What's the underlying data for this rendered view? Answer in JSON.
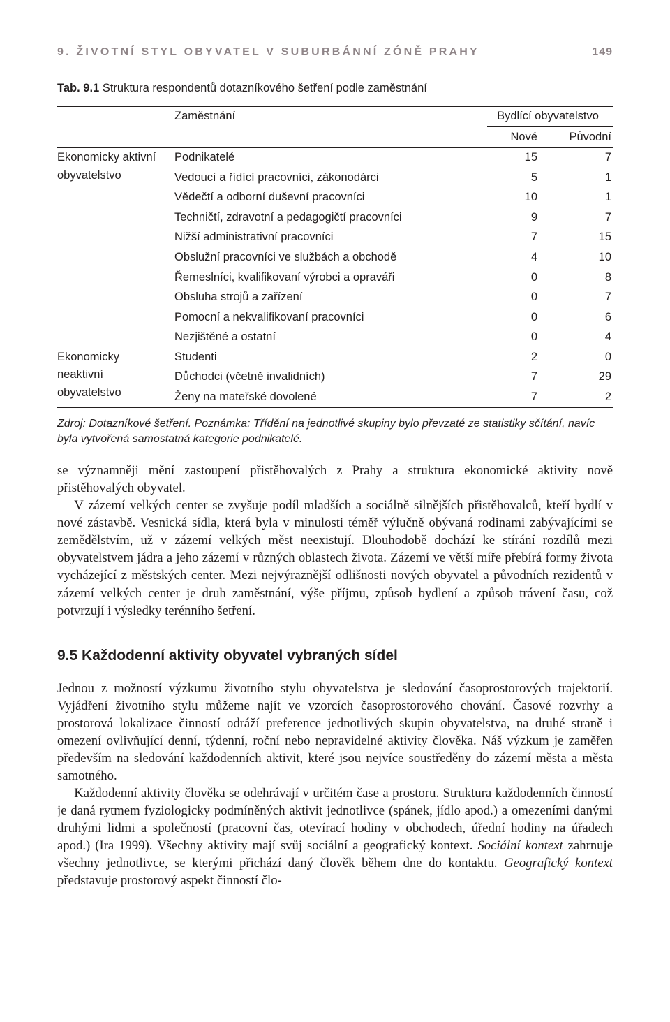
{
  "running_head": {
    "title": "9. ŽIVOTNÍ STYL OBYVATEL V SUBURBÁNNÍ ZÓNĚ PRAHY",
    "page": "149"
  },
  "table": {
    "caption_prefix": "Tab. 9.1",
    "caption": "Struktura respondentů dotazníkového šetření podle zaměstnání",
    "head": {
      "col1": "Zaměstnání",
      "super": "Bydlící obyvatelstvo",
      "sub1": "Nové",
      "sub2": "Původní"
    },
    "groups": [
      {
        "label": "Ekonomicky aktivní obyvatelstvo",
        "rows": [
          {
            "label": "Podnikatelé",
            "v1": "15",
            "v2": "7"
          },
          {
            "label": "Vedoucí a řídící pracovníci, zákonodárci",
            "v1": "5",
            "v2": "1"
          },
          {
            "label": "Vědečtí a odborní duševní pracovníci",
            "v1": "10",
            "v2": "1"
          },
          {
            "label": "Techničtí, zdravotní a pedagogičtí pracovníci",
            "v1": "9",
            "v2": "7"
          },
          {
            "label": "Nižší administrativní pracovníci",
            "v1": "7",
            "v2": "15"
          },
          {
            "label": "Obslužní pracovníci ve službách a obchodě",
            "v1": "4",
            "v2": "10"
          },
          {
            "label": "Řemeslníci, kvalifikovaní výrobci a opraváři",
            "v1": "0",
            "v2": "8"
          },
          {
            "label": "Obsluha strojů a zařízení",
            "v1": "0",
            "v2": "7"
          },
          {
            "label": "Pomocní a nekvalifikovaní pracovníci",
            "v1": "0",
            "v2": "6"
          },
          {
            "label": "Nezjištěné a ostatní",
            "v1": "0",
            "v2": "4"
          }
        ]
      },
      {
        "label": "Ekonomicky neaktivní obyvatelstvo",
        "rows": [
          {
            "label": "Studenti",
            "v1": "2",
            "v2": "0"
          },
          {
            "label": "Důchodci (včetně invalidních)",
            "v1": "7",
            "v2": "29"
          },
          {
            "label": "Ženy na mateřské dovolené",
            "v1": "7",
            "v2": "2"
          }
        ]
      }
    ]
  },
  "source_note": "Zdroj: Dotazníkové šetření. Poznámka: Třídění na jednotlivé skupiny bylo převzaté ze statistiky sčítání, navíc byla vytvořená samostatná kategorie podnikatelé.",
  "paras": {
    "p1": "se významněji mění zastoupení přistěhovalých z Prahy a struktura ekonomické aktivity nově přistěhovalých obyvatel.",
    "p2": "V zázemí velkých center se zvyšuje podíl mladších a sociálně silnějších přistěhovalců, kteří bydlí v nové zástavbě. Vesnická sídla, která byla v minulosti téměř výlučně obývaná rodinami zabývajícími se zemědělstvím, už v zázemí velkých měst neexistují. Dlouhodobě dochází ke stírání rozdílů mezi obyvatelstvem jádra a jeho zázemí v různých oblastech života. Zázemí ve větší míře přebírá formy života vycházející z městských center. Mezi nejvýraznější odlišnosti nových obyvatel a původních rezidentů v zázemí velkých center je druh zaměstnání, výše příjmu, způsob bydlení a způsob trávení času, což potvrzují i výsledky terénního šetření."
  },
  "section": {
    "heading": "9.5 Každodenní aktivity obyvatel vybraných sídel",
    "p3": "Jednou z možností výzkumu životního stylu obyvatelstva je sledování časoprostorových trajektorií. Vyjádření životního stylu můžeme najít ve vzorcích časoprostorového chování. Časové rozvrhy a prostorová lokalizace činností odráží preference jednotlivých skupin obyvatelstva, na druhé straně i omezení ovlivňující denní, týdenní, roční nebo nepravidelné aktivity člověka. Náš výzkum je zaměřen především na sledování každodenních aktivit, které jsou nejvíce soustředěny do zázemí města a města samotného."
  },
  "p4": {
    "a": "Každodenní aktivity člověka se odehrávají v určitém čase a prostoru. Struktura každodenních činností je daná rytmem fyziologicky podmíněných aktivit jednotlivce (spánek, jídlo apod.) a omezeními danými druhými lidmi a společností (pracovní čas, otevírací hodiny v obchodech, úřední hodiny na úřadech apod.) (Ira 1999). Všechny aktivity mají svůj sociální a geografický kontext. ",
    "em1": "Sociální kontext",
    "b": " zahrnuje všechny jednotlivce, se kterými přichází daný člověk během dne do kontaktu. ",
    "em2": "Geografický kontext",
    "c": " představuje prostorový aspekt činností člo-"
  }
}
